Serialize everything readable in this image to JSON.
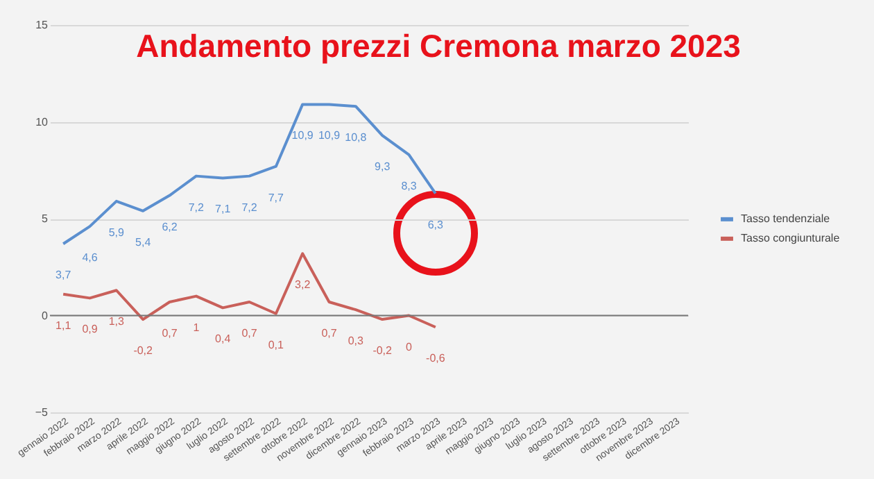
{
  "chart_data": {
    "type": "line",
    "title": "Andamento prezzi Cremona marzo 2023",
    "categories": [
      "gennaio 2022",
      "febbraio 2022",
      "marzo 2022",
      "aprile 2022",
      "maggio 2022",
      "giugno 2022",
      "luglio 2022",
      "agosto 2022",
      "settembre 2022",
      "ottobre 2022",
      "novembre 2022",
      "dicembre 2022",
      "gennaio 2023",
      "febbraio 2023",
      "marzo 2023",
      "aprile 2023",
      "maggio 2023",
      "giugno 2023",
      "luglio 2023",
      "agosto 2023",
      "settembre 2023",
      "ottobre 2023",
      "novembre 2023",
      "dicembre 2023"
    ],
    "series": [
      {
        "name": "Tasso tendenziale",
        "color": "#5b8fcf",
        "values": [
          3.7,
          4.6,
          5.9,
          5.4,
          6.2,
          7.2,
          7.1,
          7.2,
          7.7,
          10.9,
          10.9,
          10.8,
          9.3,
          8.3,
          6.3,
          null,
          null,
          null,
          null,
          null,
          null,
          null,
          null,
          null
        ],
        "value_labels": [
          "3,7",
          "4,6",
          "5,9",
          "5,4",
          "6,2",
          "7,2",
          "7,1",
          "7,2",
          "7,7",
          "10,9",
          "10,9",
          "10,8",
          "9,3",
          "8,3",
          "6,3",
          null,
          null,
          null,
          null,
          null,
          null,
          null,
          null,
          null
        ]
      },
      {
        "name": "Tasso congiunturale",
        "color": "#c9605a",
        "values": [
          1.1,
          0.9,
          1.3,
          -0.2,
          0.7,
          1,
          0.4,
          0.7,
          0.1,
          3.2,
          0.7,
          0.3,
          -0.2,
          0,
          -0.6,
          null,
          null,
          null,
          null,
          null,
          null,
          null,
          null,
          null
        ],
        "value_labels": [
          "1,1",
          "0,9",
          "1,3",
          "-0,2",
          "0,7",
          "1",
          "0,4",
          "0,7",
          "0,1",
          "3,2",
          "0,7",
          "0,3",
          "-0,2",
          "0",
          "-0,6",
          null,
          null,
          null,
          null,
          null,
          null,
          null,
          null,
          null
        ]
      }
    ],
    "ylim": [
      -5,
      15
    ],
    "yticks": [
      -5,
      0,
      5,
      10,
      15
    ],
    "grid": "y",
    "legend": "right",
    "marker": "none",
    "line_style": "solid"
  }
}
